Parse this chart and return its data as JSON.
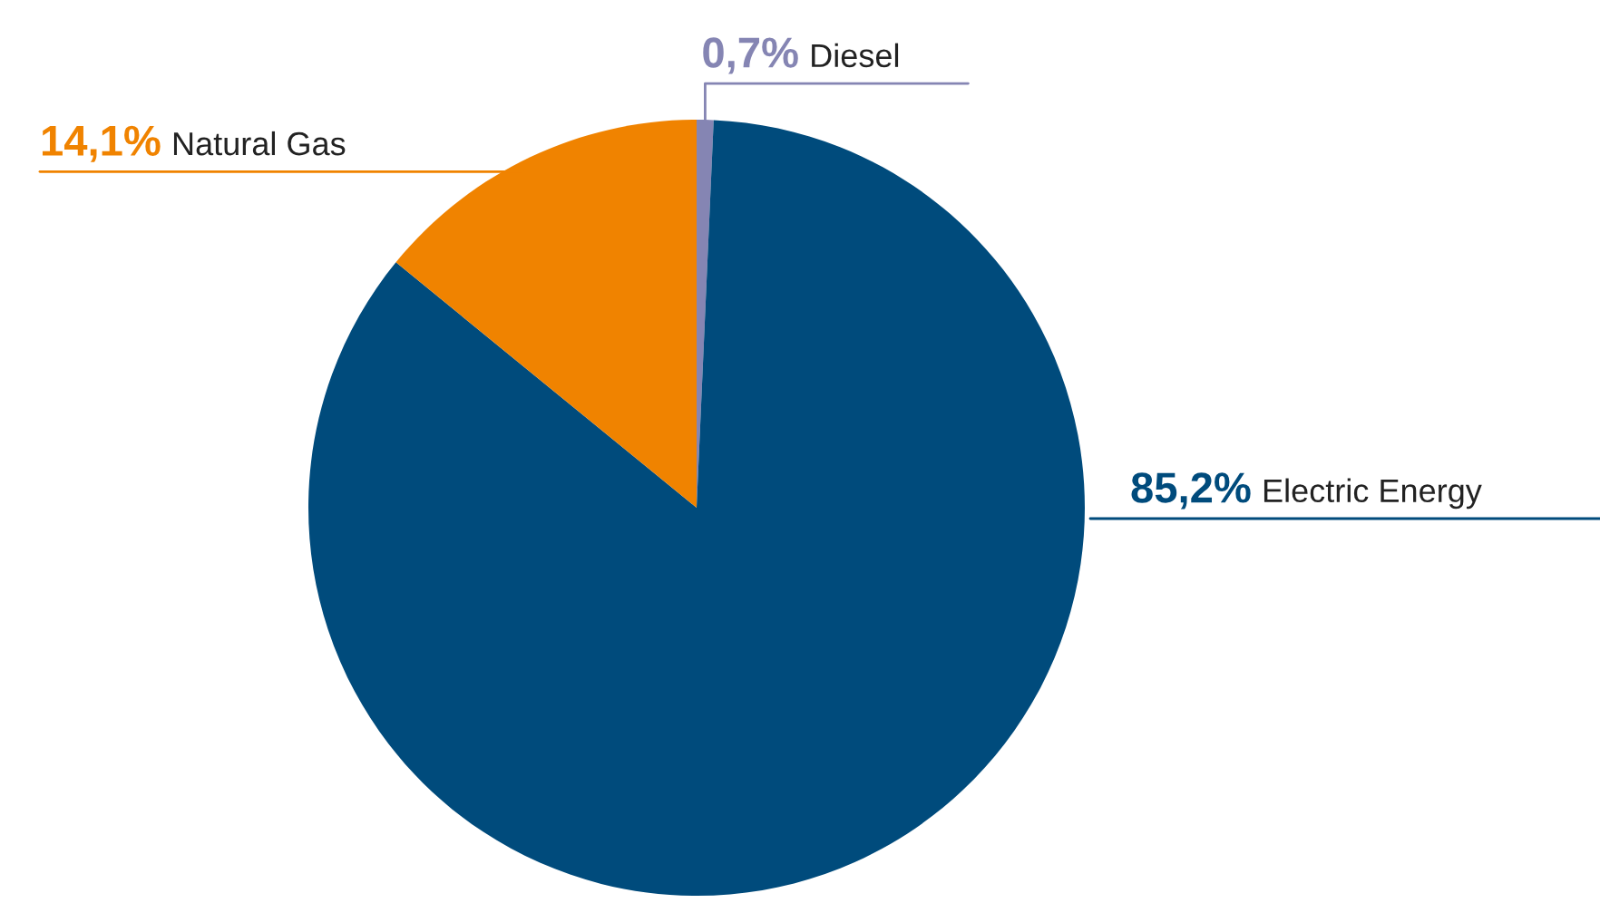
{
  "chart_data": {
    "type": "pie",
    "categories": [
      "Diesel",
      "Electric Energy",
      "Natural Gas"
    ],
    "values": [
      0.7,
      85.2,
      14.1
    ],
    "value_labels": [
      "0,7%",
      "85,2%",
      "14,1%"
    ],
    "colors": [
      "#8585b3",
      "#004b7c",
      "#f08300"
    ]
  }
}
